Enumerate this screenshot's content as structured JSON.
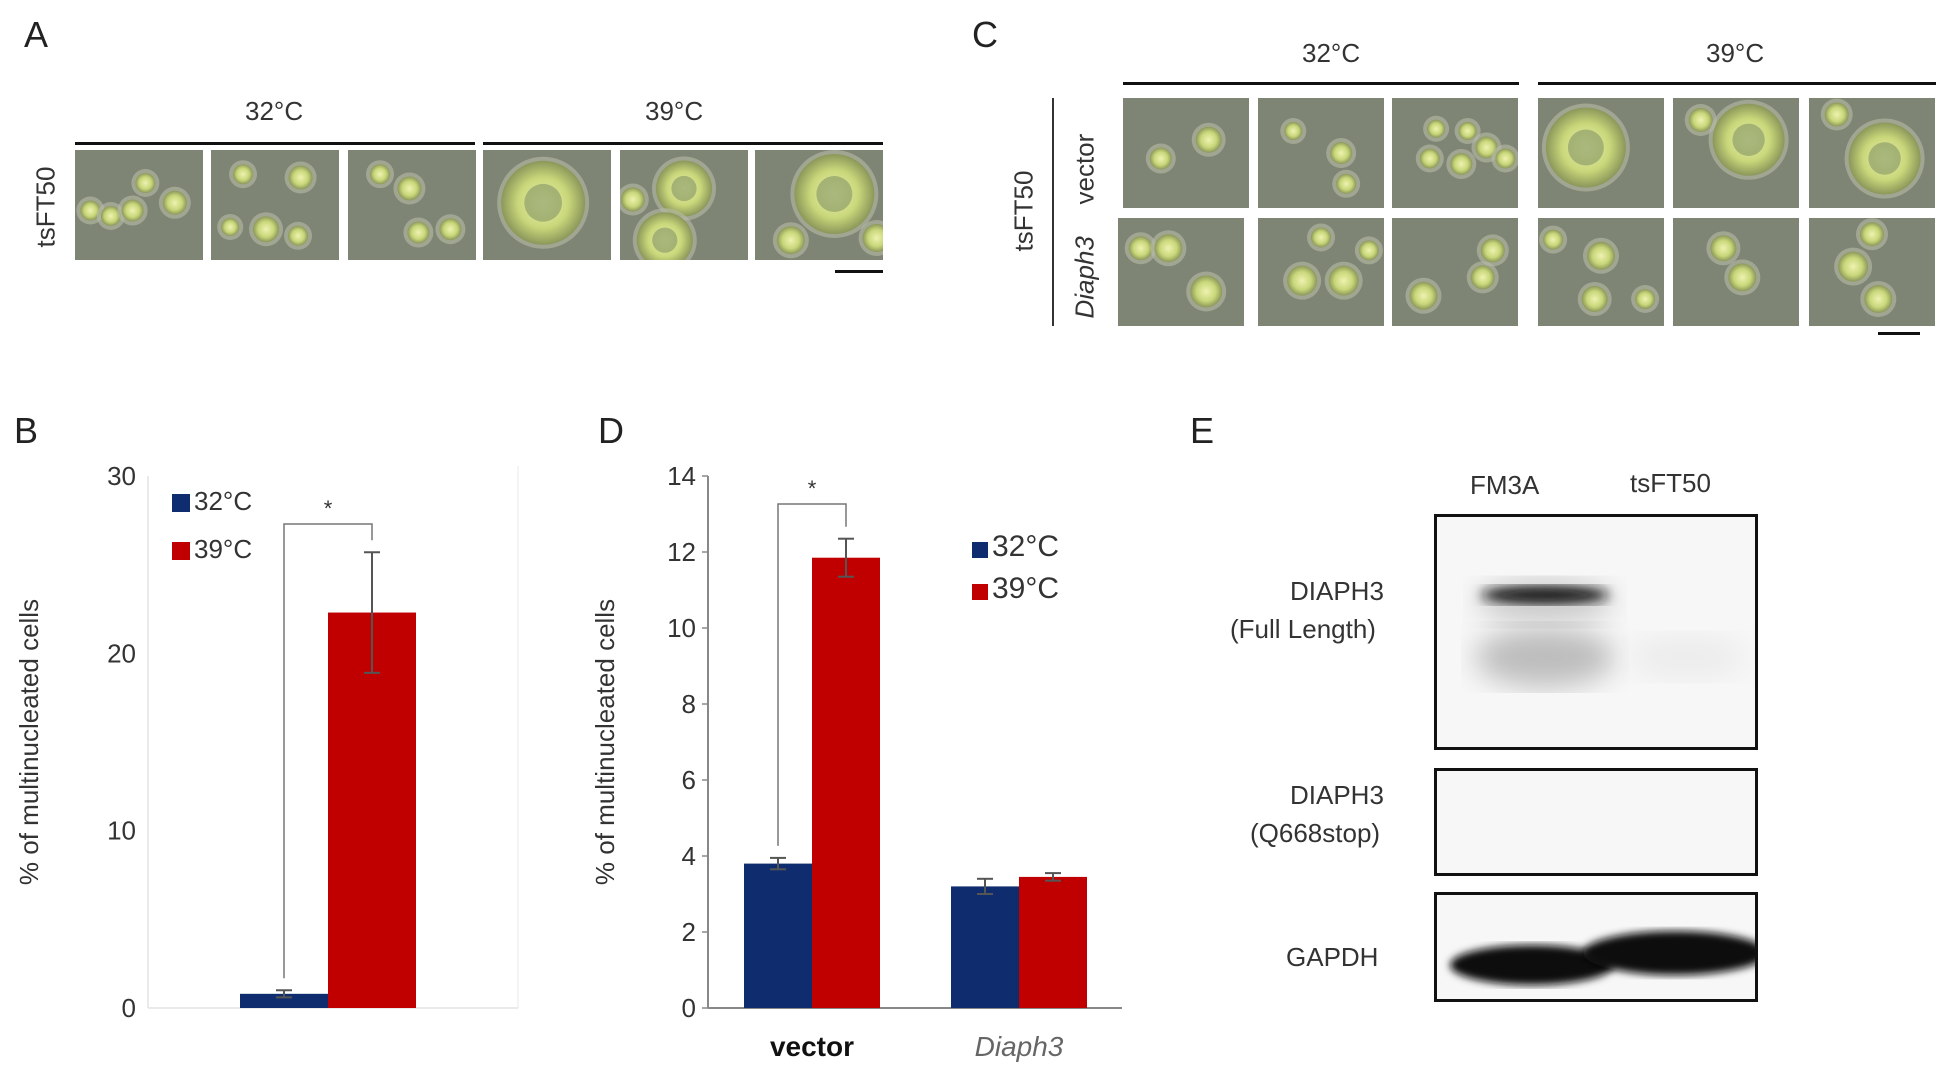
{
  "panels": {
    "A": {
      "label": "A",
      "temps": [
        "32°C",
        "39°C"
      ],
      "row_label": "tsFT50"
    },
    "C": {
      "label": "C",
      "temps": [
        "32°C",
        "39°C"
      ],
      "group_label": "tsFT50",
      "row_labels": [
        "vector",
        "Diaph3"
      ]
    },
    "B": {
      "label": "B",
      "ylabel": "% of multinucleated cells",
      "legend": [
        "32°C",
        "39°C"
      ],
      "sig": "*",
      "ticks": [
        "0",
        "10",
        "20",
        "30"
      ]
    },
    "D": {
      "label": "D",
      "ylabel": "% of multinucleated cells",
      "legend": [
        "32°C",
        "39°C"
      ],
      "sig": "*",
      "ticks": [
        "0",
        "2",
        "4",
        "6",
        "8",
        "10",
        "12",
        "14"
      ],
      "categories": [
        "vector",
        "Diaph3"
      ]
    },
    "E": {
      "label": "E",
      "lanes": [
        "FM3A",
        "tsFT50"
      ],
      "rows": [
        {
          "label1": "DIAPH3",
          "label2": "(Full Length)"
        },
        {
          "label1": "DIAPH3",
          "label2": "(Q668stop)"
        },
        {
          "label1": "GAPDH",
          "label2": ""
        }
      ]
    }
  },
  "colors": {
    "c32": "#0f2d6e",
    "c39": "#c00000"
  },
  "chart_data": [
    {
      "type": "bar",
      "title": "",
      "xlabel": "",
      "ylabel": "% of multinucleated cells",
      "categories": [
        ""
      ],
      "series": [
        {
          "name": "32°C",
          "values": [
            0.8
          ],
          "errors": [
            0.2
          ]
        },
        {
          "name": "39°C",
          "values": [
            22.3
          ],
          "errors": [
            3.4
          ]
        }
      ],
      "ylim": [
        0,
        30
      ],
      "yticks": [
        0,
        10,
        20,
        30
      ],
      "legend": "top-left",
      "grid": false
    },
    {
      "type": "bar",
      "title": "",
      "xlabel": "",
      "ylabel": "% of multinucleated cells",
      "categories": [
        "vector",
        "Diaph3"
      ],
      "series": [
        {
          "name": "32°C",
          "values": [
            3.8,
            3.2
          ],
          "errors": [
            0.15,
            0.2
          ]
        },
        {
          "name": "39°C",
          "values": [
            11.85,
            3.45
          ],
          "errors": [
            0.5,
            0.1
          ]
        }
      ],
      "ylim": [
        0,
        14
      ],
      "yticks": [
        0,
        2,
        4,
        6,
        8,
        10,
        12,
        14
      ],
      "legend": "top-right",
      "grid": false
    }
  ]
}
